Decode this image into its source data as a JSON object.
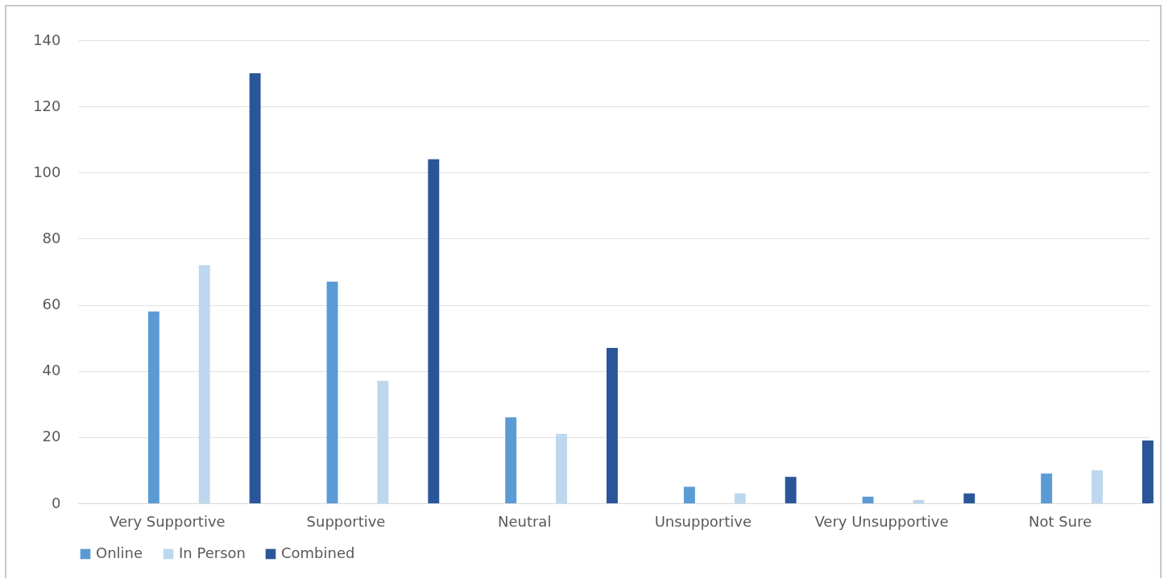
{
  "chart_data": {
    "type": "bar",
    "categories": [
      "Very Supportive",
      "Supportive",
      "Neutral",
      "Unsupportive",
      "Very Unsupportive",
      "Not Sure"
    ],
    "series": [
      {
        "name": "Online",
        "color": "#5b9bd5",
        "values": [
          58,
          67,
          26,
          5,
          2,
          9
        ]
      },
      {
        "name": "In Person",
        "color": "#bdd7ee",
        "values": [
          72,
          37,
          21,
          3,
          1,
          10
        ]
      },
      {
        "name": "Combined",
        "color": "#2a5699",
        "values": [
          130,
          104,
          47,
          8,
          3,
          19
        ]
      }
    ],
    "ylim": [
      0,
      140
    ],
    "yticks": [
      0,
      20,
      40,
      60,
      80,
      100,
      120,
      140
    ],
    "grid": "y",
    "legend": "bottom"
  }
}
